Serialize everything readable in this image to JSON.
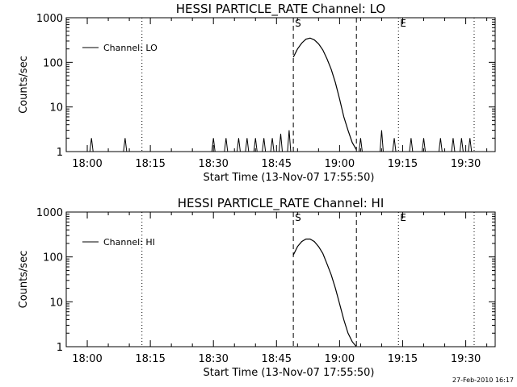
{
  "chart_data": [
    {
      "type": "line",
      "title": "HESSI PARTICLE_RATE Channel: LO",
      "xlabel": "Start Time (13-Nov-07 17:55:50)",
      "ylabel": "Counts/sec",
      "y_scale": "log",
      "ylim": [
        1,
        1000
      ],
      "x_axis": "time (HH:MM)",
      "xlim": [
        "17:55",
        "19:37"
      ],
      "x_tick_labels": [
        "18:00",
        "18:15",
        "18:30",
        "18:45",
        "19:00",
        "19:15",
        "19:30"
      ],
      "y_tick_labels": [
        "1",
        "10",
        "100",
        "1000"
      ],
      "legend": {
        "entries": [
          "Channel: LO"
        ],
        "position": "top-left"
      },
      "vertical_lines": [
        {
          "time": "18:13",
          "style": "dotted"
        },
        {
          "time": "18:49",
          "style": "dashed",
          "label": "S"
        },
        {
          "time": "19:04",
          "style": "dashed"
        },
        {
          "time": "19:14",
          "style": "dotted",
          "label": "E"
        },
        {
          "time": "19:32",
          "style": "dotted"
        }
      ],
      "series": [
        {
          "name": "Channel: LO",
          "x": [
            "18:49",
            "18:50",
            "18:51",
            "18:52",
            "18:53",
            "18:54",
            "18:55",
            "18:56",
            "18:57",
            "18:58",
            "18:59",
            "19:00",
            "19:01",
            "19:02",
            "19:03",
            "19:04"
          ],
          "y": [
            130,
            200,
            270,
            330,
            350,
            320,
            260,
            190,
            120,
            70,
            35,
            15,
            6,
            3,
            1.6,
            1.1
          ]
        }
      ],
      "background_blips": [
        {
          "time": "18:01",
          "value": 2
        },
        {
          "time": "18:09",
          "value": 2
        },
        {
          "time": "18:30",
          "value": 2
        },
        {
          "time": "18:33",
          "value": 2
        },
        {
          "time": "18:36",
          "value": 2
        },
        {
          "time": "18:38",
          "value": 2
        },
        {
          "time": "18:40",
          "value": 2
        },
        {
          "time": "18:42",
          "value": 2
        },
        {
          "time": "18:44",
          "value": 2
        },
        {
          "time": "18:46",
          "value": 2.5
        },
        {
          "time": "18:48",
          "value": 3
        },
        {
          "time": "19:05",
          "value": 2
        },
        {
          "time": "19:10",
          "value": 3
        },
        {
          "time": "19:13",
          "value": 2
        },
        {
          "time": "19:17",
          "value": 2
        },
        {
          "time": "19:20",
          "value": 2
        },
        {
          "time": "19:24",
          "value": 2
        },
        {
          "time": "19:27",
          "value": 2
        },
        {
          "time": "19:29",
          "value": 2
        },
        {
          "time": "19:31",
          "value": 2
        }
      ]
    },
    {
      "type": "line",
      "title": "HESSI PARTICLE_RATE Channel: HI",
      "xlabel": "Start Time (13-Nov-07 17:55:50)",
      "ylabel": "Counts/sec",
      "y_scale": "log",
      "ylim": [
        1,
        1000
      ],
      "x_axis": "time (HH:MM)",
      "xlim": [
        "17:55",
        "19:37"
      ],
      "x_tick_labels": [
        "18:00",
        "18:15",
        "18:30",
        "18:45",
        "19:00",
        "19:15",
        "19:30"
      ],
      "y_tick_labels": [
        "1",
        "10",
        "100",
        "1000"
      ],
      "legend": {
        "entries": [
          "Channel: HI"
        ],
        "position": "top-left"
      },
      "vertical_lines": [
        {
          "time": "18:13",
          "style": "dotted"
        },
        {
          "time": "18:49",
          "style": "dashed",
          "label": "S"
        },
        {
          "time": "19:04",
          "style": "dashed"
        },
        {
          "time": "19:14",
          "style": "dotted",
          "label": "E"
        },
        {
          "time": "19:32",
          "style": "dotted"
        }
      ],
      "series": [
        {
          "name": "Channel: HI",
          "x": [
            "18:49",
            "18:50",
            "18:51",
            "18:52",
            "18:53",
            "18:54",
            "18:55",
            "18:56",
            "18:57",
            "18:58",
            "18:59",
            "19:00",
            "19:01",
            "19:02",
            "19:03",
            "19:04"
          ],
          "y": [
            110,
            170,
            220,
            250,
            250,
            220,
            170,
            120,
            70,
            40,
            20,
            9,
            4,
            2,
            1.3,
            1
          ]
        }
      ],
      "background_blips": []
    }
  ],
  "timestamp": "27-Feb-2010 16:17"
}
